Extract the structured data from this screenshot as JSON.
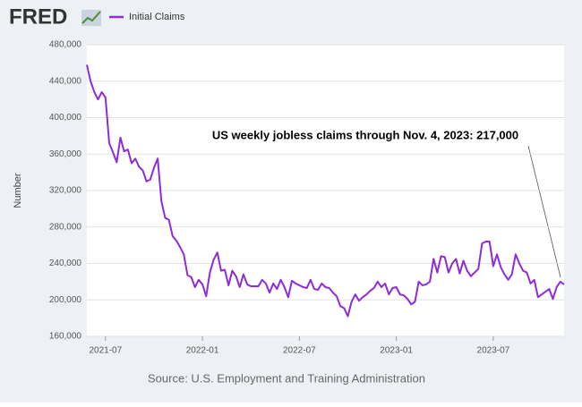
{
  "chart_data": {
    "type": "line",
    "logo": "FRED",
    "y_label": "Number",
    "annotation": "US weekly jobless claims through Nov. 4, 2023: 217,000",
    "source": "Source: U.S. Employment and Training Administration",
    "grid": true,
    "categories": [
      null,
      null,
      null,
      null,
      null,
      "2021-07",
      null,
      null,
      null,
      null,
      null,
      null,
      null,
      null,
      null,
      null,
      null,
      null,
      null,
      null,
      null,
      null,
      null,
      null,
      null,
      null,
      null,
      null,
      null,
      null,
      null,
      "2022-01",
      null,
      null,
      null,
      null,
      null,
      null,
      null,
      null,
      null,
      null,
      null,
      null,
      null,
      null,
      null,
      null,
      null,
      null,
      null,
      null,
      null,
      null,
      null,
      null,
      null,
      "2022-07",
      null,
      null,
      null,
      null,
      null,
      null,
      null,
      null,
      null,
      null,
      null,
      null,
      null,
      null,
      null,
      null,
      null,
      null,
      null,
      null,
      null,
      null,
      null,
      null,
      null,
      "2023-01",
      null,
      null,
      null,
      null,
      null,
      null,
      null,
      null,
      null,
      null,
      null,
      null,
      null,
      null,
      null,
      null,
      null,
      null,
      null,
      null,
      null,
      null,
      null,
      null,
      null,
      "2023-07",
      null,
      null,
      null,
      null,
      null,
      null,
      null,
      null,
      null,
      null,
      null,
      null,
      null,
      null,
      null,
      null,
      null,
      null,
      null
    ],
    "series": [
      {
        "name": "Initial Claims",
        "color": "#8f2bd8",
        "values": [
          458000,
          440000,
          428000,
          420000,
          428000,
          422000,
          372000,
          362000,
          351000,
          378000,
          363000,
          365000,
          350000,
          355000,
          346000,
          342000,
          330000,
          332000,
          345000,
          355000,
          308000,
          290000,
          288000,
          270000,
          265000,
          258000,
          250000,
          227000,
          225000,
          214000,
          222000,
          217000,
          204000,
          230000,
          244000,
          252000,
          232000,
          233000,
          216000,
          232000,
          226000,
          214000,
          228000,
          217000,
          215000,
          215000,
          215000,
          222000,
          218000,
          208000,
          218000,
          212000,
          222000,
          214000,
          203000,
          221000,
          218000,
          216000,
          214000,
          213000,
          222000,
          212000,
          211000,
          218000,
          214000,
          213000,
          208000,
          204000,
          193000,
          191000,
          182000,
          198000,
          206000,
          199000,
          203000,
          206000,
          210000,
          213000,
          220000,
          214000,
          218000,
          206000,
          213000,
          214000,
          206000,
          205000,
          201000,
          195000,
          198000,
          220000,
          216000,
          217000,
          220000,
          245000,
          230000,
          248000,
          247000,
          230000,
          240000,
          245000,
          229000,
          243000,
          232000,
          226000,
          230000,
          234000,
          262000,
          264000,
          264000,
          237000,
          250000,
          236000,
          228000,
          222000,
          228000,
          250000,
          240000,
          232000,
          230000,
          218000,
          222000,
          203000,
          206000,
          209000,
          212000,
          201000,
          214000,
          220000,
          217000
        ]
      }
    ],
    "ylim": [
      160000,
      480000
    ],
    "yticks": [
      {
        "value": 160000,
        "label": "160,000"
      },
      {
        "value": 200000,
        "label": "200,000"
      },
      {
        "value": 240000,
        "label": "240,000"
      },
      {
        "value": 280000,
        "label": "280,000"
      },
      {
        "value": 320000,
        "label": "320,000"
      },
      {
        "value": 360000,
        "label": "360,000"
      },
      {
        "value": 400000,
        "label": "400,000"
      },
      {
        "value": 440000,
        "label": "440,000"
      },
      {
        "value": 480000,
        "label": "480,000"
      }
    ]
  }
}
